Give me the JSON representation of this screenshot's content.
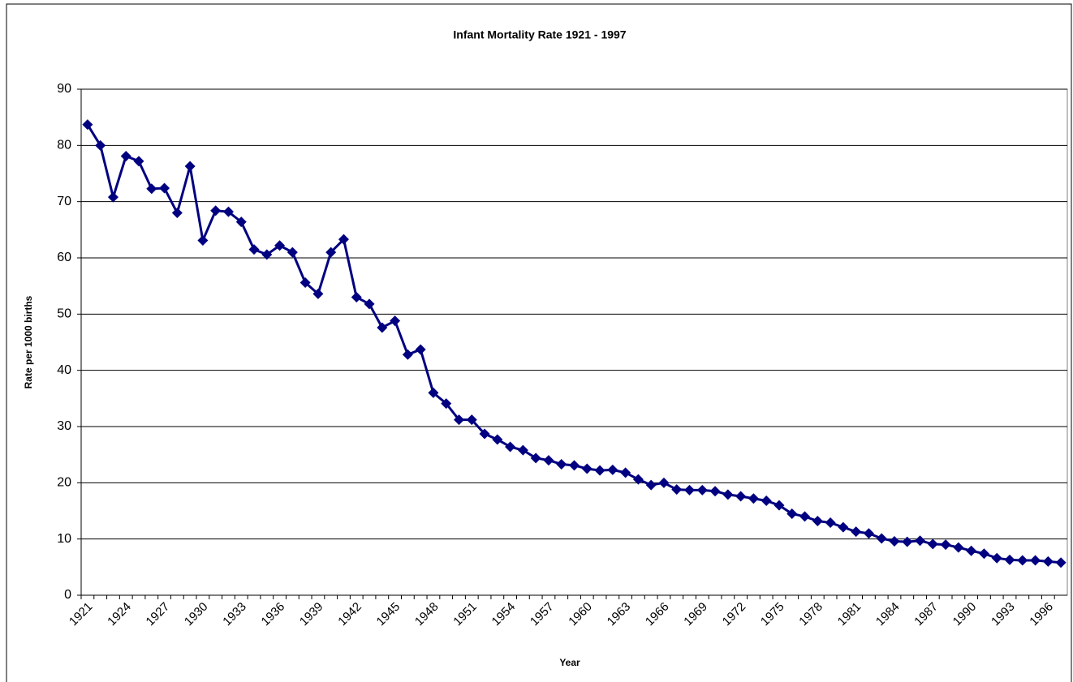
{
  "chart_data": {
    "type": "line",
    "title": "Infant Mortality Rate 1921 - 1997",
    "x_label": "Year",
    "y_label": "Rate per 1000 births",
    "categories": [
      "1921",
      null,
      null,
      "1924",
      null,
      null,
      "1927",
      null,
      null,
      "1930",
      null,
      null,
      "1933",
      null,
      null,
      "1936",
      null,
      null,
      "1939",
      null,
      null,
      "1942",
      null,
      null,
      "1945",
      null,
      null,
      "1948",
      null,
      null,
      "1951",
      null,
      null,
      "1954",
      null,
      null,
      "1957",
      null,
      null,
      "1960",
      null,
      null,
      "1963",
      null,
      null,
      "1966",
      null,
      null,
      "1969",
      null,
      null,
      "1972",
      null,
      null,
      "1975",
      null,
      null,
      "1978",
      null,
      null,
      "1981",
      null,
      null,
      "1984",
      null,
      null,
      "1987",
      null,
      null,
      "1990",
      null,
      null,
      "1993",
      null,
      null,
      "1996",
      null
    ],
    "series": [
      {
        "color": "#000080",
        "values": [
          83.7,
          80.0,
          70.8,
          78.1,
          77.2,
          72.3,
          72.4,
          68.0,
          76.3,
          63.1,
          68.4,
          68.2,
          66.4,
          61.5,
          60.6,
          62.2,
          61.0,
          55.6,
          53.6,
          61.0,
          63.3,
          53.0,
          51.8,
          47.6,
          48.8,
          42.8,
          43.7,
          36.0,
          34.1,
          31.2,
          31.2,
          28.7,
          27.7,
          26.4,
          25.8,
          24.4,
          24.0,
          23.3,
          23.1,
          22.5,
          22.2,
          22.3,
          21.8,
          20.6,
          19.6,
          20.0,
          18.8,
          18.7,
          18.7,
          18.5,
          17.9,
          17.6,
          17.2,
          16.8,
          16.0,
          14.5,
          14.0,
          13.2,
          12.9,
          12.1,
          11.3,
          11.0,
          10.1,
          9.6,
          9.5,
          9.7,
          9.1,
          9.0,
          8.5,
          7.9,
          7.4,
          6.6,
          6.3,
          6.2,
          6.2,
          6.0,
          5.8
        ]
      }
    ],
    "ylim": [
      0,
      90
    ],
    "yticks": [
      0,
      10,
      20,
      30,
      40,
      50,
      60,
      70,
      80,
      90
    ],
    "grid": true
  }
}
